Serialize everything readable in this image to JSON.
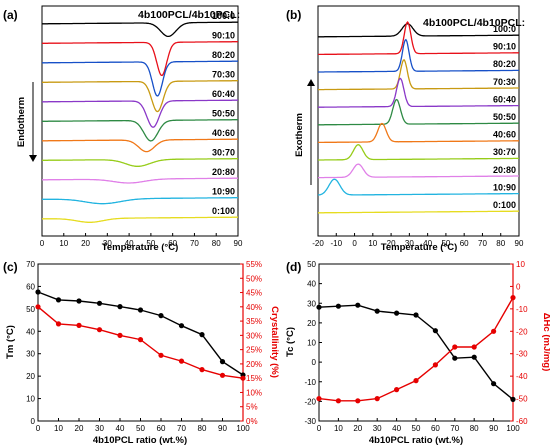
{
  "panel_labels": [
    "(a)",
    "(b)",
    "(c)",
    "(d)"
  ],
  "colors": {
    "black": "#000000",
    "red": "#e8101a",
    "blue": "#1750c8",
    "gold": "#c89a12",
    "purple": "#8a38c8",
    "green": "#2e8a44",
    "orange": "#f07818",
    "lime": "#96cc18",
    "pink": "#e080e8",
    "cyan": "#22b4e0",
    "yellow": "#e6dc20",
    "axis_red": "#e60000"
  },
  "chart_data": [
    {
      "id": "a",
      "type": "line",
      "legend_title": "4b100PCL/4b10PCL:",
      "xlabel": "Temperature (°C)",
      "xlim": [
        0,
        90
      ],
      "xticks": [
        0,
        10,
        20,
        30,
        40,
        50,
        60,
        70,
        80,
        90
      ],
      "arrow_label": "Endotherm",
      "series": [
        {
          "name": "100:0",
          "color_key": "black",
          "peak_x": 58,
          "depth": 0.7,
          "width": 3.5
        },
        {
          "name": "90:10",
          "color_key": "red",
          "peak_x": 55,
          "depth": 1.7,
          "width": 2.3
        },
        {
          "name": "80:20",
          "color_key": "blue",
          "peak_x": 53,
          "depth": 1.75,
          "width": 2.3
        },
        {
          "name": "70:30",
          "color_key": "gold",
          "peak_x": 53,
          "depth": 1.55,
          "width": 2.6
        },
        {
          "name": "60:40",
          "color_key": "purple",
          "peak_x": 51,
          "depth": 1.35,
          "width": 2.8
        },
        {
          "name": "50:50",
          "color_key": "green",
          "peak_x": 50,
          "depth": 1.05,
          "width": 3.2
        },
        {
          "name": "40:60",
          "color_key": "orange",
          "peak_x": 48,
          "depth": 0.6,
          "width": 3.6
        },
        {
          "name": "30:70",
          "color_key": "lime",
          "peak_x": 44,
          "depth": 0.35,
          "width": 5.5
        },
        {
          "name": "20:80",
          "color_key": "pink",
          "peak_x": 40,
          "depth": 0.2,
          "width": 7
        },
        {
          "name": "10:90",
          "color_key": "cyan",
          "peak_x": 28,
          "depth": 0.25,
          "width": 8
        },
        {
          "name": "0:100",
          "color_key": "yellow",
          "peak_x": 22,
          "depth": 0.2,
          "width": 6
        }
      ]
    },
    {
      "id": "b",
      "type": "line",
      "legend_title": "4b100PCL/4b10PCL:",
      "xlabel": "Temperature (°C)",
      "xlim": [
        -20,
        90
      ],
      "xticks": [
        -20,
        -10,
        0,
        10,
        20,
        30,
        40,
        50,
        60,
        70,
        80,
        90
      ],
      "arrow_label": "Exotherm",
      "series": [
        {
          "name": "100:0",
          "color_key": "black",
          "peak_x": 29,
          "height": 0.7,
          "width": 3
        },
        {
          "name": "90:10",
          "color_key": "red",
          "peak_x": 29,
          "height": 1.8,
          "width": 1.8
        },
        {
          "name": "80:20",
          "color_key": "blue",
          "peak_x": 28,
          "height": 1.8,
          "width": 1.8
        },
        {
          "name": "70:30",
          "color_key": "gold",
          "peak_x": 27,
          "height": 1.65,
          "width": 1.9
        },
        {
          "name": "60:40",
          "color_key": "purple",
          "peak_x": 25,
          "height": 1.6,
          "width": 2
        },
        {
          "name": "50:50",
          "color_key": "green",
          "peak_x": 23,
          "height": 1.4,
          "width": 2.1
        },
        {
          "name": "40:60",
          "color_key": "orange",
          "peak_x": 15,
          "height": 1.05,
          "width": 2.3
        },
        {
          "name": "30:70",
          "color_key": "lime",
          "peak_x": 2,
          "height": 0.85,
          "width": 2.6
        },
        {
          "name": "20:80",
          "color_key": "pink",
          "peak_x": 2,
          "height": 0.75,
          "width": 2.8
        },
        {
          "name": "10:90",
          "color_key": "cyan",
          "peak_x": -11,
          "height": 0.9,
          "width": 3
        },
        {
          "name": "0:100",
          "color_key": "yellow",
          "peak_x": -20,
          "height": 0,
          "width": 3
        }
      ]
    },
    {
      "id": "c",
      "type": "line",
      "xlabel": "4b10PCL ratio (wt.%)",
      "xlim": [
        0,
        100
      ],
      "xticks": [
        0,
        10,
        20,
        30,
        40,
        50,
        60,
        70,
        80,
        90,
        100
      ],
      "left_axis": {
        "label": "Tm (°C)",
        "lim": [
          0,
          70
        ],
        "ticks": [
          0,
          10,
          20,
          30,
          40,
          50,
          60,
          70
        ]
      },
      "right_axis": {
        "label": "Crystallinity (%)",
        "lim": [
          0,
          55
        ],
        "ticks": [
          "0%",
          "5%",
          "10%",
          "15%",
          "20%",
          "25%",
          "30%",
          "35%",
          "40%",
          "45%",
          "50%",
          "55%"
        ]
      },
      "series": [
        {
          "axis": "left",
          "color_key": "black",
          "x": [
            0,
            10,
            20,
            30,
            40,
            50,
            60,
            70,
            80,
            90,
            100
          ],
          "y": [
            57.5,
            54,
            53.5,
            52.5,
            51,
            49.5,
            47,
            42.5,
            38.5,
            26.5,
            20.5
          ]
        },
        {
          "axis": "right",
          "color_key": "axis_red",
          "x": [
            0,
            10,
            20,
            30,
            40,
            50,
            60,
            70,
            80,
            90,
            100
          ],
          "y": [
            40,
            34,
            33.5,
            32,
            30,
            28.5,
            23,
            21,
            18,
            16,
            15
          ]
        }
      ]
    },
    {
      "id": "d",
      "type": "line",
      "xlabel": "4b10PCL ratio (wt.%)",
      "xlim": [
        0,
        100
      ],
      "xticks": [
        0,
        10,
        20,
        30,
        40,
        50,
        60,
        70,
        80,
        90,
        100
      ],
      "left_axis": {
        "label": "Tc (°C)",
        "lim": [
          -30,
          50
        ],
        "ticks": [
          -30,
          -20,
          -10,
          0,
          10,
          20,
          30,
          40,
          50
        ]
      },
      "right_axis": {
        "label": "ΔHc (mJ/mg)",
        "lim": [
          -60,
          10
        ],
        "ticks": [
          10,
          0,
          -10,
          -20,
          -30,
          -40,
          -50,
          -60
        ],
        "inverted": true
      },
      "series": [
        {
          "axis": "left",
          "color_key": "black",
          "x": [
            0,
            10,
            20,
            30,
            40,
            50,
            60,
            70,
            80,
            90,
            100
          ],
          "y": [
            28,
            28.5,
            29,
            26,
            25,
            24,
            16,
            2,
            2.5,
            -11,
            -19
          ]
        },
        {
          "axis": "right",
          "color_key": "axis_red",
          "x": [
            0,
            10,
            20,
            30,
            40,
            50,
            60,
            70,
            80,
            90,
            100
          ],
          "y": [
            -50,
            -51,
            -51,
            -50,
            -46,
            -42,
            -35,
            -27,
            -27,
            -20,
            -5
          ]
        }
      ]
    }
  ]
}
